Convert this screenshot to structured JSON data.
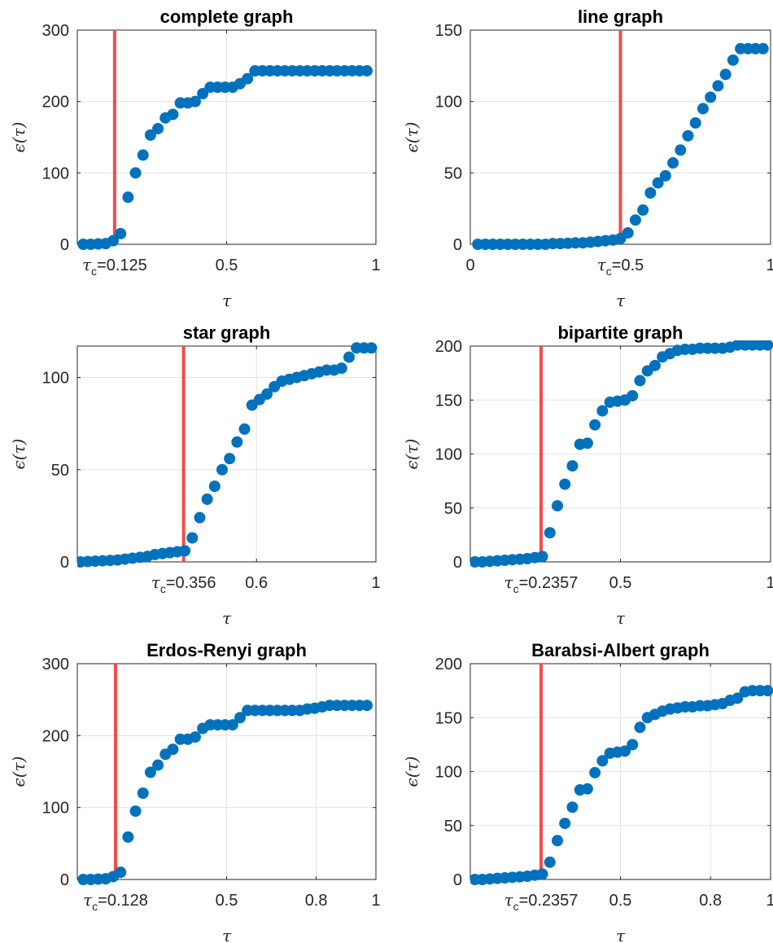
{
  "chart_data": [
    {
      "type": "scatter",
      "title": "complete graph",
      "xlabel": "τ",
      "ylabel": "ϵ(τ)",
      "xlim": [
        0,
        1
      ],
      "ylim": [
        0,
        300
      ],
      "xticks": [
        {
          "v": 0.125,
          "prefix": "τ",
          "sub": "c",
          "text": "=0.125"
        },
        {
          "v": 0.5,
          "text": "0.5"
        },
        {
          "v": 1,
          "text": "1"
        }
      ],
      "yticks": [
        0,
        100,
        200,
        300
      ],
      "tau_c": 0.125,
      "grid": true,
      "x": [
        0.02,
        0.045,
        0.07,
        0.095,
        0.12,
        0.145,
        0.17,
        0.195,
        0.22,
        0.245,
        0.27,
        0.295,
        0.32,
        0.345,
        0.37,
        0.395,
        0.42,
        0.445,
        0.47,
        0.495,
        0.52,
        0.545,
        0.57,
        0.595,
        0.62,
        0.645,
        0.67,
        0.695,
        0.72,
        0.745,
        0.77,
        0.795,
        0.82,
        0.845,
        0.87,
        0.895,
        0.92,
        0.945,
        0.97
      ],
      "y": [
        0,
        0,
        0.5,
        1,
        5,
        15,
        66,
        100,
        125,
        153,
        162,
        177,
        182,
        198,
        198,
        200,
        211,
        220,
        220,
        220,
        220,
        225,
        232,
        243,
        243,
        243,
        243,
        243,
        243,
        243,
        243,
        243,
        243,
        243,
        243,
        243,
        243,
        243,
        243
      ]
    },
    {
      "type": "scatter",
      "title": "line graph",
      "xlabel": "τ",
      "ylabel": "ϵ(τ)",
      "xlim": [
        0,
        1
      ],
      "ylim": [
        0,
        150
      ],
      "xticks": [
        {
          "v": 0,
          "text": "0"
        },
        {
          "v": 0.5,
          "prefix": "τ",
          "sub": "c",
          "text": "=0.5"
        },
        {
          "v": 1,
          "text": "1"
        }
      ],
      "yticks": [
        0,
        50,
        100,
        150
      ],
      "tau_c": 0.5,
      "grid": true,
      "x": [
        0.025,
        0.05,
        0.075,
        0.1,
        0.125,
        0.15,
        0.175,
        0.2,
        0.225,
        0.25,
        0.275,
        0.3,
        0.325,
        0.35,
        0.375,
        0.4,
        0.425,
        0.45,
        0.475,
        0.5,
        0.525,
        0.55,
        0.575,
        0.6,
        0.625,
        0.65,
        0.675,
        0.7,
        0.725,
        0.75,
        0.775,
        0.8,
        0.825,
        0.85,
        0.875,
        0.9,
        0.925,
        0.95,
        0.975
      ],
      "y": [
        0,
        0,
        0,
        0,
        0,
        0,
        0,
        0,
        0,
        0,
        0.5,
        0.5,
        0.7,
        1,
        1,
        1.5,
        2,
        2.5,
        3,
        4,
        8,
        17,
        24,
        36,
        43,
        48,
        57,
        66,
        76,
        85,
        95,
        103,
        111,
        119,
        129,
        137,
        137,
        137,
        137
      ]
    },
    {
      "type": "scatter",
      "title": "star graph",
      "xlabel": "τ",
      "ylabel": "ϵ(τ)",
      "xlim": [
        0,
        1
      ],
      "ylim": [
        0,
        117
      ],
      "xticks": [
        {
          "v": 0.356,
          "prefix": "τ",
          "sub": "c",
          "text": "=0.356"
        },
        {
          "v": 0.6,
          "text": "0.6"
        },
        {
          "v": 1,
          "text": "1"
        }
      ],
      "yticks": [
        0,
        50,
        100
      ],
      "tau_c": 0.356,
      "grid": true,
      "x": [
        0.01,
        0.035,
        0.06,
        0.085,
        0.11,
        0.135,
        0.16,
        0.185,
        0.21,
        0.235,
        0.26,
        0.285,
        0.31,
        0.335,
        0.36,
        0.385,
        0.41,
        0.435,
        0.46,
        0.485,
        0.51,
        0.535,
        0.56,
        0.585,
        0.61,
        0.635,
        0.66,
        0.685,
        0.71,
        0.735,
        0.76,
        0.785,
        0.81,
        0.835,
        0.86,
        0.885,
        0.91,
        0.935,
        0.96,
        0.985
      ],
      "y": [
        0,
        0.2,
        0.4,
        0.6,
        0.8,
        1,
        1.5,
        2,
        2.5,
        3,
        4,
        4.5,
        5,
        5.5,
        6,
        13,
        24,
        34,
        41,
        50,
        56,
        65,
        72,
        85,
        88,
        91,
        95,
        98,
        99,
        100,
        101,
        102,
        103,
        104,
        104,
        105,
        111,
        116,
        116,
        116
      ]
    },
    {
      "type": "scatter",
      "title": "bipartite graph",
      "xlabel": "τ",
      "ylabel": "ϵ(τ)",
      "xlim": [
        0,
        1
      ],
      "ylim": [
        0,
        200
      ],
      "xticks": [
        {
          "v": 0.2357,
          "prefix": "τ",
          "sub": "c",
          "text": "=0.2357"
        },
        {
          "v": 0.5,
          "text": "0.5"
        },
        {
          "v": 1,
          "text": "1"
        }
      ],
      "yticks": [
        0,
        50,
        100,
        150,
        200
      ],
      "tau_c": 0.2357,
      "grid": true,
      "x": [
        0.015,
        0.04,
        0.065,
        0.09,
        0.115,
        0.14,
        0.165,
        0.19,
        0.215,
        0.24,
        0.265,
        0.29,
        0.315,
        0.34,
        0.365,
        0.39,
        0.415,
        0.44,
        0.465,
        0.49,
        0.515,
        0.54,
        0.565,
        0.59,
        0.615,
        0.64,
        0.665,
        0.69,
        0.715,
        0.74,
        0.765,
        0.79,
        0.815,
        0.84,
        0.865,
        0.89,
        0.915,
        0.94,
        0.965,
        0.99
      ],
      "y": [
        0,
        0,
        0.5,
        1,
        1.5,
        2,
        2.5,
        3,
        4,
        5,
        27,
        52,
        72,
        89,
        109,
        110,
        127,
        140,
        148,
        149,
        150,
        154,
        168,
        177,
        182,
        190,
        193,
        196,
        197,
        197,
        198,
        198,
        198,
        198,
        199,
        201,
        201,
        201,
        201,
        201
      ]
    },
    {
      "type": "scatter",
      "title": "Erdos-Renyi graph",
      "xlabel": "τ",
      "ylabel": "ϵ(τ)",
      "xlim": [
        0,
        1
      ],
      "ylim": [
        0,
        300
      ],
      "xticks": [
        {
          "v": 0.128,
          "prefix": "τ",
          "sub": "c",
          "text": "=0.128"
        },
        {
          "v": 0.5,
          "text": "0.5"
        },
        {
          "v": 0.8,
          "text": "0.8"
        },
        {
          "v": 1,
          "text": "1"
        }
      ],
      "yticks": [
        0,
        100,
        200,
        300
      ],
      "tau_c": 0.128,
      "grid": true,
      "x": [
        0.02,
        0.045,
        0.07,
        0.095,
        0.12,
        0.145,
        0.17,
        0.195,
        0.22,
        0.245,
        0.27,
        0.295,
        0.32,
        0.345,
        0.37,
        0.395,
        0.42,
        0.445,
        0.47,
        0.495,
        0.52,
        0.545,
        0.57,
        0.595,
        0.62,
        0.645,
        0.67,
        0.695,
        0.72,
        0.745,
        0.77,
        0.795,
        0.82,
        0.845,
        0.87,
        0.895,
        0.92,
        0.945,
        0.97
      ],
      "y": [
        0,
        0,
        0.5,
        1,
        4,
        10,
        59,
        95,
        120,
        149,
        159,
        174,
        181,
        195,
        195,
        198,
        210,
        215,
        215,
        215,
        215,
        225,
        235,
        235,
        235,
        235,
        235,
        235,
        235,
        235,
        237,
        238,
        240,
        242,
        242,
        242,
        242,
        242,
        242
      ]
    },
    {
      "type": "scatter",
      "title": "Barabsi-Albert graph",
      "xlabel": "τ",
      "ylabel": "ϵ(τ)",
      "xlim": [
        0,
        1
      ],
      "ylim": [
        0,
        200
      ],
      "xticks": [
        {
          "v": 0.2357,
          "prefix": "τ",
          "sub": "c",
          "text": "=0.2357"
        },
        {
          "v": 0.5,
          "text": "0.5"
        },
        {
          "v": 0.8,
          "text": "0.8"
        },
        {
          "v": 1,
          "text": "1"
        }
      ],
      "yticks": [
        0,
        50,
        100,
        150,
        200
      ],
      "tau_c": 0.2357,
      "grid": true,
      "x": [
        0.015,
        0.04,
        0.065,
        0.09,
        0.115,
        0.14,
        0.165,
        0.19,
        0.215,
        0.24,
        0.265,
        0.29,
        0.315,
        0.34,
        0.365,
        0.39,
        0.415,
        0.44,
        0.465,
        0.49,
        0.515,
        0.54,
        0.565,
        0.59,
        0.615,
        0.64,
        0.665,
        0.69,
        0.715,
        0.74,
        0.765,
        0.79,
        0.815,
        0.84,
        0.865,
        0.89,
        0.915,
        0.94,
        0.965,
        0.99
      ],
      "y": [
        0,
        0,
        0.5,
        1,
        1.5,
        2,
        2.5,
        3,
        4,
        5,
        16,
        36,
        52,
        67,
        83,
        84,
        99,
        110,
        117,
        118,
        119,
        125,
        141,
        150,
        153,
        156,
        158,
        159,
        160,
        160,
        161,
        161,
        162,
        163,
        166,
        168,
        174,
        175,
        175,
        175
      ]
    }
  ],
  "colors": {
    "markers": "#0072bd",
    "critical_line": "#f24b4b",
    "grid": "#e3e3e3",
    "axes": "#262626"
  }
}
